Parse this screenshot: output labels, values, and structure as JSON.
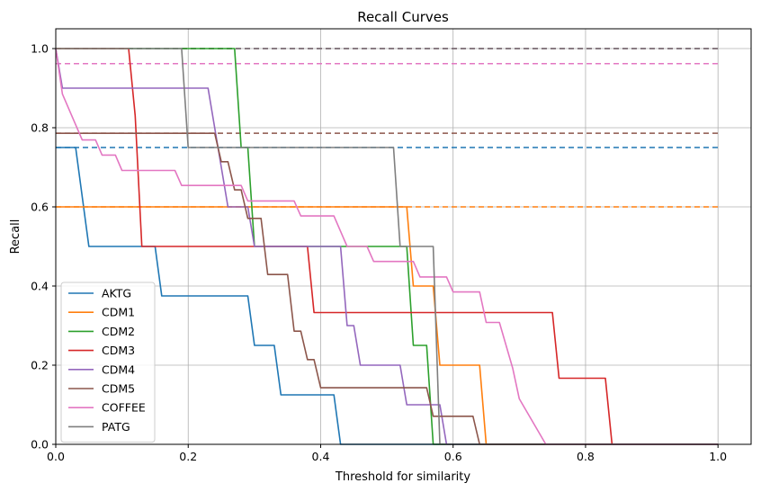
{
  "chart_data": {
    "type": "line",
    "title": "Recall Curves",
    "xlabel": "Threshold for similarity",
    "ylabel": "Recall",
    "xlim": [
      0,
      1.05
    ],
    "ylim": [
      0,
      1.05
    ],
    "xticks": [
      0.0,
      0.2,
      0.4,
      0.6,
      0.8,
      1.0
    ],
    "xtick_labels": [
      "0.0",
      "0.2",
      "0.4",
      "0.6",
      "0.8",
      "1.0"
    ],
    "yticks": [
      0.0,
      0.2,
      0.4,
      0.6,
      0.8,
      1.0
    ],
    "ytick_labels": [
      "0.0",
      "0.2",
      "0.4",
      "0.6",
      "0.8",
      "1.0"
    ],
    "grid": true,
    "legend_position": "lower-left",
    "series": [
      {
        "name": "AKTG",
        "color": "#1f77b4",
        "baseline": 0.75,
        "points": [
          [
            0,
            0.75
          ],
          [
            0.03,
            0.75
          ],
          [
            0.05,
            0.5
          ],
          [
            0.15,
            0.5
          ],
          [
            0.16,
            0.375
          ],
          [
            0.29,
            0.375
          ],
          [
            0.3,
            0.25
          ],
          [
            0.33,
            0.25
          ],
          [
            0.34,
            0.125
          ],
          [
            0.42,
            0.125
          ],
          [
            0.43,
            0.0
          ],
          [
            1.0,
            0.0
          ]
        ]
      },
      {
        "name": "CDM1",
        "color": "#ff7f0e",
        "baseline": 0.6,
        "points": [
          [
            0,
            0.6
          ],
          [
            0.53,
            0.6
          ],
          [
            0.54,
            0.4
          ],
          [
            0.57,
            0.4
          ],
          [
            0.58,
            0.2
          ],
          [
            0.64,
            0.2
          ],
          [
            0.65,
            0.0
          ],
          [
            1.0,
            0.0
          ]
        ]
      },
      {
        "name": "CDM2",
        "color": "#2ca02c",
        "baseline": 1.0,
        "points": [
          [
            0,
            1.0
          ],
          [
            0.27,
            1.0
          ],
          [
            0.28,
            0.75
          ],
          [
            0.29,
            0.75
          ],
          [
            0.3,
            0.5
          ],
          [
            0.53,
            0.5
          ],
          [
            0.54,
            0.25
          ],
          [
            0.56,
            0.25
          ],
          [
            0.57,
            0.0
          ],
          [
            1.0,
            0.0
          ]
        ]
      },
      {
        "name": "CDM3",
        "color": "#d62728",
        "baseline": 1.0,
        "points": [
          [
            0,
            1.0
          ],
          [
            0.11,
            1.0
          ],
          [
            0.12,
            0.83
          ],
          [
            0.13,
            0.5
          ],
          [
            0.38,
            0.5
          ],
          [
            0.39,
            0.333
          ],
          [
            0.75,
            0.333
          ],
          [
            0.76,
            0.167
          ],
          [
            0.83,
            0.167
          ],
          [
            0.84,
            0.0
          ],
          [
            1.0,
            0.0
          ]
        ]
      },
      {
        "name": "CDM4",
        "color": "#9467bd",
        "baseline": 1.0,
        "points": [
          [
            0,
            1.0
          ],
          [
            0.01,
            0.9
          ],
          [
            0.23,
            0.9
          ],
          [
            0.26,
            0.6
          ],
          [
            0.29,
            0.6
          ],
          [
            0.3,
            0.5
          ],
          [
            0.43,
            0.5
          ],
          [
            0.44,
            0.3
          ],
          [
            0.45,
            0.3
          ],
          [
            0.46,
            0.2
          ],
          [
            0.52,
            0.2
          ],
          [
            0.53,
            0.1
          ],
          [
            0.58,
            0.1
          ],
          [
            0.59,
            0.0
          ],
          [
            1.0,
            0.0
          ]
        ]
      },
      {
        "name": "CDM5",
        "color": "#8c564b",
        "baseline": 0.786,
        "points": [
          [
            0,
            0.786
          ],
          [
            0.24,
            0.786
          ],
          [
            0.25,
            0.714
          ],
          [
            0.26,
            0.714
          ],
          [
            0.27,
            0.643
          ],
          [
            0.28,
            0.643
          ],
          [
            0.29,
            0.571
          ],
          [
            0.31,
            0.571
          ],
          [
            0.32,
            0.429
          ],
          [
            0.35,
            0.429
          ],
          [
            0.36,
            0.286
          ],
          [
            0.37,
            0.286
          ],
          [
            0.38,
            0.214
          ],
          [
            0.39,
            0.214
          ],
          [
            0.4,
            0.143
          ],
          [
            0.56,
            0.143
          ],
          [
            0.57,
            0.071
          ],
          [
            0.63,
            0.071
          ],
          [
            0.64,
            0.0
          ],
          [
            1.0,
            0.0
          ]
        ]
      },
      {
        "name": "COFFEE",
        "color": "#e377c2",
        "baseline": 0.962,
        "points": [
          [
            0,
            1.0
          ],
          [
            0.01,
            0.885
          ],
          [
            0.04,
            0.769
          ],
          [
            0.06,
            0.769
          ],
          [
            0.07,
            0.731
          ],
          [
            0.09,
            0.731
          ],
          [
            0.1,
            0.692
          ],
          [
            0.18,
            0.692
          ],
          [
            0.19,
            0.654
          ],
          [
            0.28,
            0.654
          ],
          [
            0.29,
            0.615
          ],
          [
            0.36,
            0.615
          ],
          [
            0.37,
            0.577
          ],
          [
            0.42,
            0.577
          ],
          [
            0.44,
            0.5
          ],
          [
            0.47,
            0.5
          ],
          [
            0.48,
            0.462
          ],
          [
            0.54,
            0.462
          ],
          [
            0.55,
            0.423
          ],
          [
            0.59,
            0.423
          ],
          [
            0.6,
            0.385
          ],
          [
            0.64,
            0.385
          ],
          [
            0.65,
            0.308
          ],
          [
            0.67,
            0.308
          ],
          [
            0.69,
            0.192
          ],
          [
            0.7,
            0.115
          ],
          [
            0.74,
            0.0
          ],
          [
            1.0,
            0.0
          ]
        ]
      },
      {
        "name": "PATG",
        "color": "#7f7f7f",
        "baseline": 1.0,
        "points": [
          [
            0,
            1.0
          ],
          [
            0.19,
            1.0
          ],
          [
            0.2,
            0.75
          ],
          [
            0.51,
            0.75
          ],
          [
            0.52,
            0.5
          ],
          [
            0.57,
            0.5
          ],
          [
            0.58,
            0.0
          ],
          [
            1.0,
            0.0
          ]
        ]
      }
    ]
  }
}
